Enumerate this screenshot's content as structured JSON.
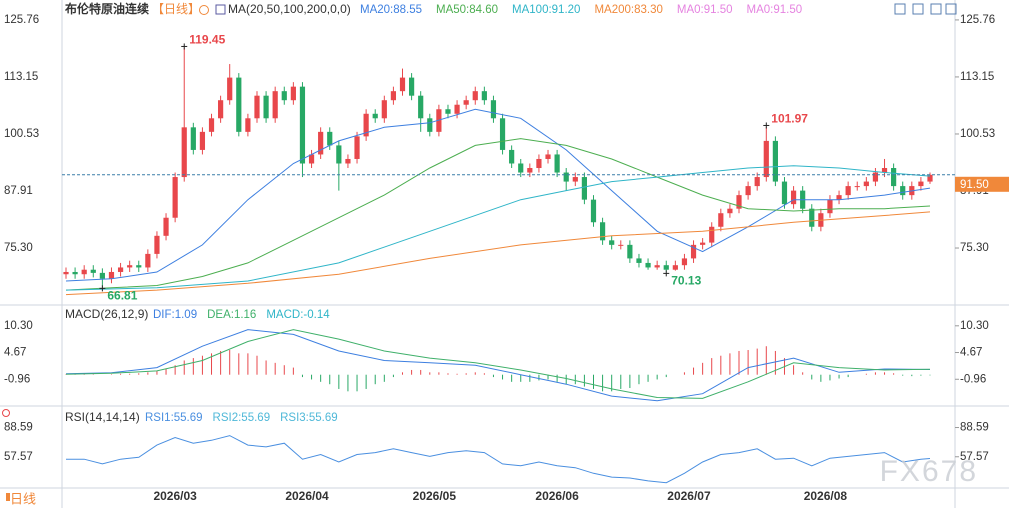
{
  "chart_data": [
    {
      "type": "candlestick",
      "title": "布伦特原油连续",
      "period": "【日线】",
      "indicator": "MA(20,50,100,200,0,0)",
      "ylim": [
        63.8,
        128.4
      ],
      "yticks": [
        {
          "value": 75.3,
          "label": "75.30"
        },
        87.91,
        100.53,
        113.15,
        125.76
      ],
      "xticks": [
        {
          "value": 12,
          "label": "2026/03"
        },
        {
          "value": 26.5,
          "label": "2026/04"
        },
        {
          "value": 40.5,
          "label": "2026/05"
        },
        {
          "value": 54,
          "label": "2026/06"
        },
        {
          "value": 68.5,
          "label": "2026/07"
        },
        {
          "value": 83.5,
          "label": "2026/08"
        }
      ],
      "up_color": "#e8474b",
      "down_color": "#27a865",
      "open": [
        69.5,
        70,
        69.5,
        70.5,
        69.8,
        68.5,
        70,
        71,
        71.5,
        71,
        74,
        78,
        82,
        91,
        102,
        97,
        101,
        104,
        108,
        113,
        101,
        104,
        109,
        104,
        110,
        108,
        111,
        94,
        96,
        101,
        98,
        94,
        95,
        100,
        105,
        104,
        108,
        110,
        113,
        109,
        104,
        101,
        106,
        105,
        107,
        108,
        110,
        108,
        104,
        97,
        94,
        92,
        93,
        95,
        96,
        92,
        90,
        91,
        86,
        81,
        77,
        76,
        76,
        73,
        72,
        71,
        71.5,
        70.5,
        71.5,
        73,
        76,
        76.5,
        80,
        83,
        84,
        87,
        89,
        91,
        99,
        90,
        85,
        88,
        84,
        80,
        83,
        86,
        87,
        89,
        89,
        90,
        92,
        93,
        89,
        87,
        89,
        90
      ],
      "high": [
        71,
        71,
        71.5,
        71.5,
        70.8,
        71,
        72,
        72.5,
        72.5,
        75,
        79,
        83,
        92,
        119.45,
        103,
        102,
        105,
        109,
        116,
        114,
        105,
        110,
        110,
        111,
        111,
        112,
        112,
        97,
        102,
        102,
        99,
        96,
        101,
        106,
        106,
        109,
        111,
        115,
        114,
        110,
        105,
        107,
        107,
        108,
        109,
        111,
        111,
        109,
        105,
        98,
        95,
        94,
        96,
        97,
        97,
        93,
        92,
        92,
        87,
        82,
        78,
        77,
        77,
        74,
        73,
        72.5,
        72.5,
        72.5,
        74,
        77,
        77.5,
        81,
        84,
        85,
        88,
        90,
        92,
        101.97,
        100,
        91,
        89,
        89,
        85,
        84,
        87,
        88,
        90,
        90,
        91,
        93,
        95,
        94,
        90,
        90,
        91,
        92
      ],
      "low": [
        68.5,
        68.5,
        68.5,
        68.8,
        66.81,
        67.5,
        69,
        70,
        70,
        70,
        73,
        77,
        81,
        90,
        96,
        96,
        100,
        103,
        107,
        100,
        100,
        103,
        103,
        103,
        107,
        107,
        91,
        93,
        95,
        97,
        88,
        93,
        94,
        99,
        103,
        103,
        107,
        109,
        108,
        101,
        100,
        100,
        104,
        104,
        106,
        107,
        107,
        103,
        96,
        93,
        91,
        91,
        92,
        94,
        91,
        88,
        89,
        85,
        80,
        76,
        75,
        75,
        72,
        71,
        70.5,
        70.5,
        70.13,
        70.3,
        70.5,
        72,
        75,
        75.5,
        79,
        82,
        83,
        86,
        88,
        90,
        89,
        84,
        84,
        83,
        79,
        79,
        82,
        85,
        86,
        88,
        88,
        89,
        91,
        88,
        86,
        86,
        88,
        89.5
      ],
      "close": [
        70,
        69.5,
        70.5,
        69.8,
        68.5,
        70,
        71,
        71.5,
        71,
        74,
        78,
        82,
        91,
        102,
        97,
        101,
        104,
        108,
        113,
        101,
        104,
        109,
        104,
        110,
        108,
        111,
        94,
        96,
        101,
        98,
        94,
        95,
        100,
        105,
        104,
        108,
        110,
        113,
        109,
        104,
        101,
        106,
        105,
        107,
        108,
        110,
        108,
        104,
        97,
        94,
        92,
        93,
        95,
        96,
        92,
        90,
        91,
        86,
        81,
        77,
        76,
        76,
        73,
        72,
        71,
        71.5,
        70.5,
        71.5,
        73,
        76,
        76.5,
        80,
        83,
        84,
        87,
        89,
        91,
        99,
        90,
        85,
        88,
        84,
        80,
        83,
        86,
        87,
        89,
        89,
        90,
        92,
        93,
        89,
        87,
        89,
        90,
        91.5
      ],
      "series": [
        {
          "name": "MA20:88.55",
          "color": "#3d7fe0",
          "x": [
            0,
            5,
            10,
            15,
            20,
            25,
            30,
            35,
            40,
            45,
            50,
            55,
            60,
            65,
            70,
            75,
            80,
            85,
            90,
            95
          ],
          "values": [
            68,
            68.5,
            70,
            76,
            86,
            94,
            99,
            102,
            103,
            106,
            104,
            97,
            88,
            79,
            74.5,
            80,
            86,
            86,
            87,
            88.55
          ]
        },
        {
          "name": "MA50:84.60",
          "color": "#4cae50",
          "x": [
            0,
            5,
            10,
            15,
            20,
            25,
            30,
            35,
            40,
            45,
            50,
            55,
            60,
            65,
            70,
            75,
            80,
            85,
            90,
            95
          ],
          "values": [
            66,
            66.5,
            67,
            69,
            72,
            77,
            82,
            87,
            93,
            98,
            99.5,
            98,
            95,
            91,
            87,
            84,
            83.5,
            84,
            84,
            84.6
          ]
        },
        {
          "name": "MA100:91.20",
          "color": "#2fb5c8",
          "x": [
            0,
            10,
            20,
            30,
            40,
            50,
            55,
            60,
            65,
            70,
            75,
            80,
            85,
            90,
            95
          ],
          "values": [
            66,
            66.5,
            68,
            72,
            79,
            86,
            88,
            90,
            91,
            92,
            93,
            93.5,
            93,
            92,
            91.2
          ]
        },
        {
          "name": "MA200:83.30",
          "color": "#f0883a",
          "x": [
            0,
            10,
            20,
            30,
            40,
            50,
            60,
            70,
            80,
            90,
            95
          ],
          "values": [
            65,
            66,
            67.5,
            69.5,
            73,
            76,
            78,
            79,
            81,
            82.5,
            83.3
          ]
        },
        {
          "name": "MA0:91.50",
          "color": "#e583e0"
        },
        {
          "name": "MA0:91.50",
          "color": "#e583e0"
        }
      ],
      "annotations": [
        {
          "index": 13,
          "label": "119.45",
          "color": "#e8474b"
        },
        {
          "index": 77,
          "label": "101.97",
          "color": "#e8474b"
        },
        {
          "index": 4,
          "label": "66.81",
          "color": "#27a865"
        },
        {
          "index": 66,
          "label": "70.13",
          "color": "#27a865"
        }
      ],
      "last_price": {
        "value": 91.5,
        "label": "91.50",
        "color": "#f0883a"
      }
    },
    {
      "type": "macd",
      "title": "MACD(26,12,9)",
      "ylim": [
        -6.17,
        14.05
      ],
      "yticks": [
        {
          "value": 10.3,
          "label": "10.30"
        },
        4.67,
        -0.96
      ],
      "up_color": "#e8474b",
      "down_color": "#27a865",
      "histogram": [
        0.1,
        0.1,
        0.2,
        0.1,
        0,
        0.1,
        0.2,
        0.2,
        0.3,
        0.5,
        0.8,
        1.2,
        2,
        3,
        3.5,
        4,
        4.5,
        5,
        5.2,
        4.5,
        4.5,
        4,
        3,
        2.5,
        2,
        1.5,
        -0.5,
        -1,
        -1.5,
        -2,
        -3,
        -3.5,
        -3.5,
        -3,
        -2,
        -1.5,
        -0.5,
        0.5,
        1,
        1,
        0.5,
        0.5,
        0.3,
        0.2,
        0.3,
        0.5,
        0.3,
        -0.5,
        -1,
        -1.5,
        -1.5,
        -1.5,
        -1.2,
        -1,
        -1.5,
        -2,
        -2,
        -2.5,
        -3,
        -3.5,
        -3.5,
        -3,
        -2.8,
        -2,
        -1.5,
        -1,
        -0.5,
        0,
        0.5,
        1.5,
        2.5,
        3.5,
        4,
        4.5,
        5,
        5.2,
        5.5,
        6,
        5,
        3.5,
        2,
        0.5,
        -1,
        -1.5,
        -1.2,
        -0.8,
        -0.5,
        0,
        0.2,
        0.5,
        0.5,
        0.3,
        -0.2,
        -0.3,
        -0.2,
        -0.14
      ],
      "series": [
        {
          "name": "DIF:1.09",
          "color": "#3d7fe0",
          "x": [
            0,
            5,
            10,
            15,
            20,
            25,
            30,
            35,
            40,
            45,
            50,
            55,
            60,
            65,
            70,
            75,
            80,
            85,
            90,
            95
          ],
          "values": [
            0.2,
            0.4,
            1.5,
            6,
            9.5,
            8.5,
            5,
            3,
            2.5,
            2,
            0,
            -2,
            -4.5,
            -5.5,
            -4,
            1.5,
            3.5,
            0.5,
            1.2,
            1.09
          ]
        },
        {
          "name": "DEA:1.16",
          "color": "#3fb06a",
          "x": [
            0,
            5,
            10,
            15,
            20,
            25,
            30,
            35,
            40,
            45,
            50,
            55,
            60,
            65,
            70,
            75,
            80,
            85,
            90,
            95
          ],
          "values": [
            0.1,
            0.3,
            0.8,
            3,
            7,
            9.5,
            7.5,
            5,
            3.5,
            2.5,
            1,
            -0.8,
            -3,
            -4.8,
            -5,
            -1.5,
            2.5,
            1.5,
            1,
            1.16
          ]
        },
        {
          "name": "MACD:-0.14",
          "color": "#2fb5c8"
        }
      ]
    },
    {
      "type": "line",
      "title": "RSI(14,14,14)",
      "ylim": [
        26.55,
        107.2
      ],
      "yticks": [
        88.59,
        57.57
      ],
      "series": [
        {
          "name": "RSI1:55.69",
          "color": "#4a8fe0",
          "x": [
            0,
            2,
            4,
            6,
            8,
            10,
            12,
            14,
            16,
            18,
            20,
            22,
            24,
            26,
            28,
            30,
            32,
            34,
            36,
            38,
            40,
            42,
            44,
            46,
            48,
            50,
            52,
            54,
            56,
            58,
            60,
            62,
            64,
            66,
            68,
            70,
            72,
            74,
            76,
            78,
            80,
            82,
            84,
            86,
            88,
            90,
            92,
            94,
            95
          ],
          "values": [
            55,
            55,
            50,
            55,
            57,
            70,
            78,
            72,
            75,
            80,
            70,
            68,
            72,
            55,
            60,
            52,
            60,
            62,
            66,
            62,
            58,
            62,
            64,
            62,
            50,
            48,
            52,
            48,
            46,
            40,
            36,
            35,
            32,
            30,
            40,
            52,
            60,
            62,
            66,
            55,
            56,
            48,
            56,
            58,
            60,
            62,
            52,
            55,
            55.69
          ]
        },
        {
          "name": "RSI2:55.69",
          "color": "#4fb8d8"
        },
        {
          "name": "RSI3:55.69",
          "color": "#4fb8d8"
        }
      ]
    }
  ],
  "footer_period": "日线",
  "watermark": "FX678"
}
